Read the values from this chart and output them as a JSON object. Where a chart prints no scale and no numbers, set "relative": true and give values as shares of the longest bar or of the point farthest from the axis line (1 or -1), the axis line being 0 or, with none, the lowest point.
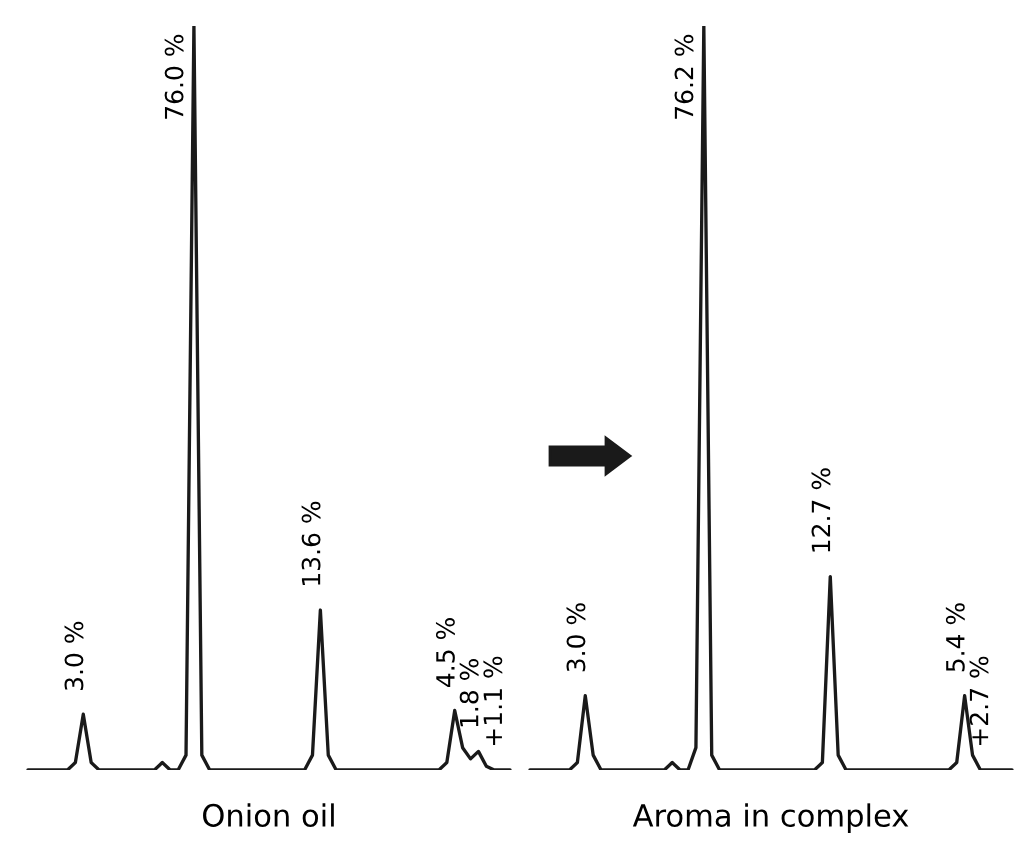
{
  "chart_data": [
    {
      "type": "line",
      "relative": true,
      "xlabel": "Onion oil",
      "marker": "none",
      "line_style": "solid",
      "categories": [
        null,
        null,
        null,
        null,
        null,
        null,
        null,
        null,
        null,
        null,
        null,
        null,
        null,
        null,
        null,
        null,
        null,
        null,
        null,
        null,
        null,
        null,
        null,
        null,
        null,
        null,
        null,
        null,
        null,
        null,
        null,
        null,
        null,
        null,
        null,
        null,
        null,
        null,
        null,
        null,
        null,
        null,
        null,
        null,
        null,
        null,
        null,
        null,
        null,
        null,
        null,
        null,
        null,
        null,
        null,
        null,
        null,
        null,
        null,
        null,
        null,
        null
      ],
      "series": [
        {
          "color": "#1a1a1a",
          "values": [
            0,
            0,
            0,
            0,
            0,
            0,
            0.01,
            0.075,
            0.01,
            0,
            0,
            0,
            0,
            0,
            0,
            0,
            0,
            0.01,
            0,
            0,
            0.02,
            1,
            0.02,
            0,
            0,
            0,
            0,
            0,
            0,
            0,
            0,
            0,
            0,
            0,
            0,
            0,
            0.02,
            0.215,
            0.02,
            0,
            0,
            0,
            0,
            0,
            0,
            0,
            0,
            0,
            0,
            0,
            0,
            0,
            0,
            0.01,
            0.08,
            0.03,
            0.015,
            0.025,
            0.005,
            0,
            0,
            0
          ]
        }
      ],
      "annotations": [
        "3.0 %",
        "76.0 %",
        "13.6 %",
        "4.5 %",
        "1.8 %",
        "+1.1 %"
      ]
    },
    {
      "type": "line",
      "relative": true,
      "xlabel": "Aroma in complex",
      "marker": "none",
      "line_style": "solid",
      "categories": [
        null,
        null,
        null,
        null,
        null,
        null,
        null,
        null,
        null,
        null,
        null,
        null,
        null,
        null,
        null,
        null,
        null,
        null,
        null,
        null,
        null,
        null,
        null,
        null,
        null,
        null,
        null,
        null,
        null,
        null,
        null,
        null,
        null,
        null,
        null,
        null,
        null,
        null,
        null,
        null,
        null,
        null,
        null,
        null,
        null,
        null,
        null,
        null,
        null,
        null,
        null,
        null,
        null,
        null,
        null,
        null,
        null,
        null,
        null,
        null,
        null,
        null
      ],
      "series": [
        {
          "color": "#1a1a1a",
          "values": [
            0,
            0,
            0,
            0,
            0,
            0,
            0.01,
            0.1,
            0.02,
            0,
            0,
            0,
            0,
            0,
            0,
            0,
            0,
            0,
            0.01,
            0,
            0,
            0.03,
            1,
            0.02,
            0,
            0,
            0,
            0,
            0,
            0,
            0,
            0,
            0,
            0,
            0,
            0,
            0,
            0.01,
            0.26,
            0.02,
            0,
            0,
            0,
            0,
            0,
            0,
            0,
            0,
            0,
            0,
            0,
            0,
            0,
            0,
            0.01,
            0.1,
            0.02,
            0,
            0,
            0,
            0,
            0
          ]
        }
      ],
      "annotations": [
        "3.0 %",
        "76.2 %",
        "12.7 %",
        "5.4 %",
        "+2.7 %"
      ]
    }
  ]
}
